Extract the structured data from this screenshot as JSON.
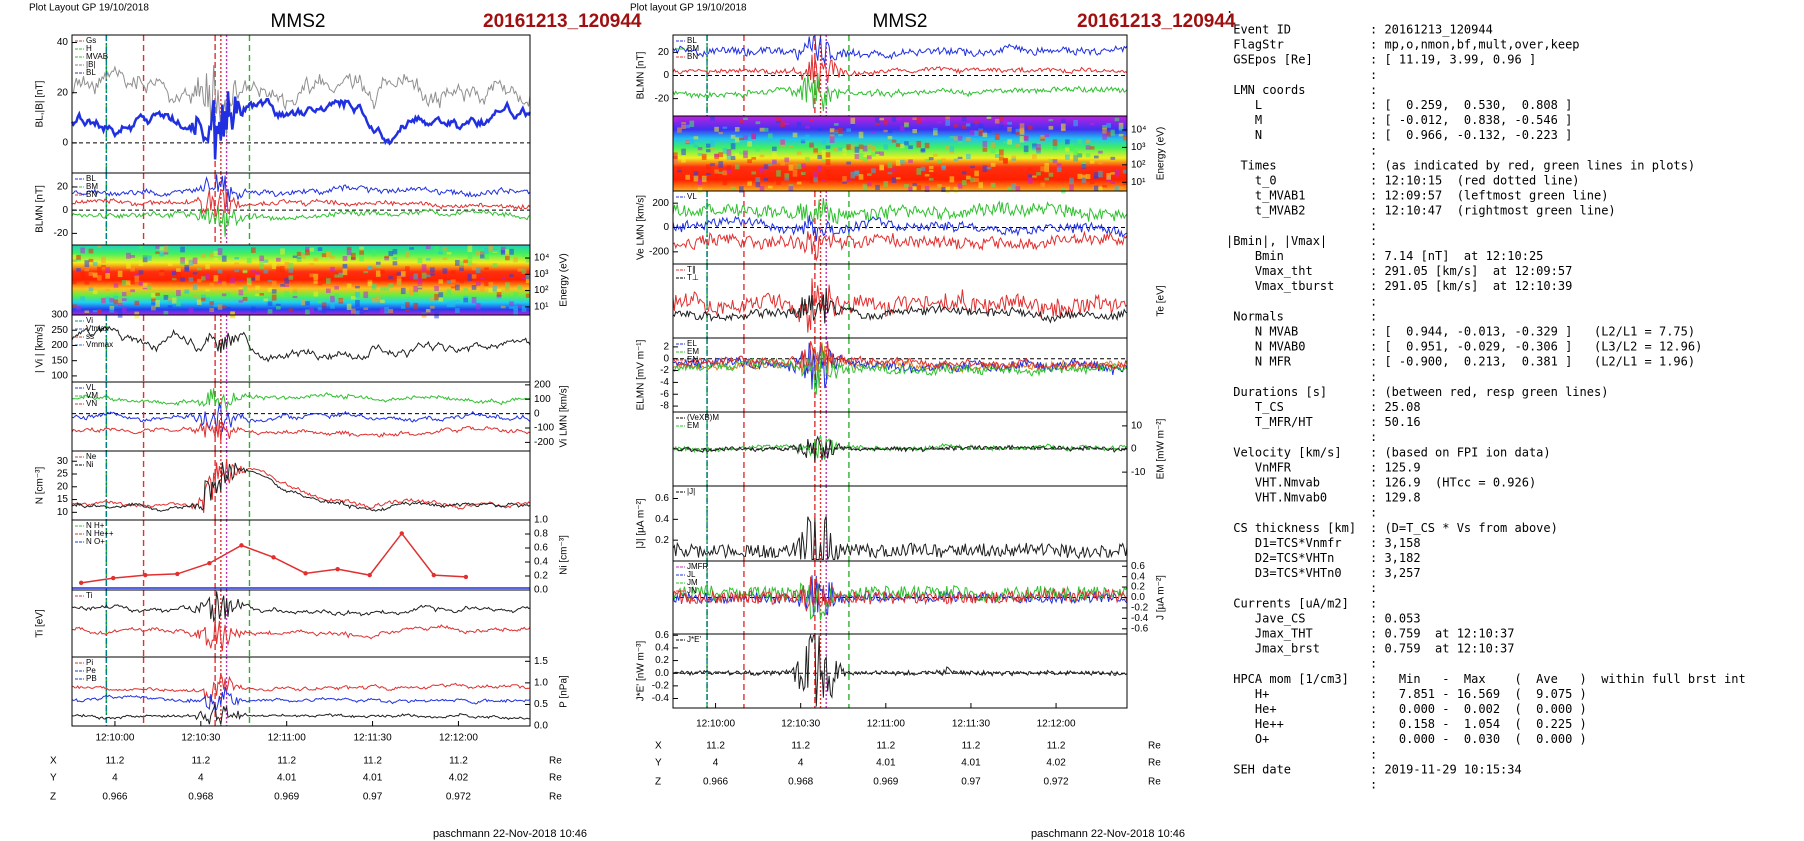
{
  "left": {
    "header": "Plot Layout GP 19/10/2018",
    "mission": "MMS2",
    "event": "20161213_120944",
    "xlim": [
      43785,
      43945
    ],
    "xticks": [
      {
        "value": 43800,
        "label": "12:10:00"
      },
      {
        "value": 43830,
        "label": "12:10:30"
      },
      {
        "value": 43860,
        "label": "12:11:00"
      },
      {
        "value": 43890,
        "label": "12:11:30"
      },
      {
        "value": 43920,
        "label": "12:12:00"
      }
    ],
    "panels": [
      {
        "ylabel": "BL,|B| [nT]",
        "ylim": [
          -12,
          43
        ],
        "yticks": [
          0,
          20,
          40
        ],
        "side": "left",
        "legend": [
          {
            "name": "Gs",
            "color": "#e03030"
          },
          {
            "name": "H",
            "color": "#30c030"
          },
          {
            "name": "MVAB",
            "color": "#30c030"
          },
          {
            "name": "|B|",
            "color": "#808080"
          },
          {
            "name": "BL",
            "color": "#2030e0"
          }
        ]
      },
      {
        "ylabel": "BLMN [nT]",
        "ylim": [
          -30,
          32
        ],
        "yticks": [
          -20,
          0,
          20
        ],
        "side": "left",
        "legend": [
          {
            "name": "BL",
            "color": "#2030e0"
          },
          {
            "name": "BM",
            "color": "#30c030"
          },
          {
            "name": "BN",
            "color": "#e03030"
          }
        ]
      },
      {
        "ylabel": "Energy (eV)",
        "ylim": [
          0.5,
          4.8
        ],
        "yticks": [
          {
            "value": 4,
            "label": "10⁴"
          },
          {
            "value": 3,
            "label": "10³"
          },
          {
            "value": 2,
            "label": "10²"
          },
          {
            "value": 1,
            "label": "10¹"
          }
        ],
        "side": "right",
        "spectrogram": true
      },
      {
        "ylabel": "| Vi | [km/s]",
        "ylim": [
          80,
          300
        ],
        "yticks": [
          100,
          150,
          200,
          250,
          300
        ],
        "side": "left",
        "legend": [
          {
            "name": "Vi",
            "color": "#009090"
          },
          {
            "name": "Vtmax",
            "color": "#3060ff"
          },
          {
            "name": "ss",
            "color": "#e03030"
          },
          {
            "name": "Vmmax",
            "color": "#3060ff"
          }
        ]
      },
      {
        "ylabel": "Vi LMN [km/s]",
        "ylim": [
          -260,
          220
        ],
        "yticks": [
          200,
          100,
          0,
          -100,
          -200
        ],
        "side": "right",
        "legend": [
          {
            "name": "VL",
            "color": "#2030e0"
          },
          {
            "name": "VM",
            "color": "#30c030"
          },
          {
            "name": "VN",
            "color": "#e03030"
          }
        ]
      },
      {
        "ylabel": "N [cm⁻³]",
        "ylim": [
          7,
          34
        ],
        "yticks": [
          10,
          15,
          20,
          25,
          30
        ],
        "side": "left",
        "legend": [
          {
            "name": "Ne",
            "color": "#e03030"
          },
          {
            "name": "Ni",
            "color": "#000000"
          }
        ]
      },
      {
        "ylabel": "Ni [cm⁻³]",
        "ylim": [
          0,
          1.0
        ],
        "yticks": [
          {
            "value": 1,
            "label": "1.0"
          },
          {
            "value": 0.8,
            "label": "0.8"
          },
          {
            "value": 0.6,
            "label": "0.6"
          },
          {
            "value": 0.4,
            "label": "0.4"
          },
          {
            "value": 0.2,
            "label": "0.2"
          },
          {
            "value": 0,
            "label": "0.0"
          }
        ],
        "side": "right",
        "legend": [
          {
            "name": "N H+",
            "color": "#30c030"
          },
          {
            "name": "N He++",
            "color": "#e03030"
          },
          {
            "name": "N O+",
            "color": "#2030e0"
          }
        ]
      },
      {
        "ylabel": "Ti [eV]",
        "ylim": [
          0,
          1
        ],
        "side": "left",
        "legend": [
          {
            "name": "Ti",
            "color": "#e03030"
          }
        ]
      },
      {
        "ylabel": "P [nPa]",
        "ylim": [
          0,
          1.6
        ],
        "yticks": [
          {
            "value": 1.5,
            "label": "1.5"
          },
          {
            "value": 1,
            "label": "1.0"
          },
          {
            "value": 0.5,
            "label": "0.5"
          },
          {
            "value": 0,
            "label": "0.0"
          }
        ],
        "side": "right",
        "legend": [
          {
            "name": "Pi",
            "color": "#e03030"
          },
          {
            "name": "Pe",
            "color": "#2030e0"
          },
          {
            "name": "PB",
            "color": "#2030e0"
          }
        ]
      }
    ],
    "coords": [
      {
        "name": "X",
        "values": [
          11.2,
          11.2,
          11.2,
          11.2,
          11.2
        ],
        "unit": "Re"
      },
      {
        "name": "Y",
        "values": [
          4,
          4,
          4.01,
          4.01,
          4.02
        ],
        "unit": "Re"
      },
      {
        "name": "Z",
        "values": [
          0.966,
          0.968,
          0.969,
          0.97,
          0.972
        ],
        "unit": "Re"
      }
    ],
    "footer": "paschmann 22-Nov-2018 10:46"
  },
  "middle": {
    "header": "Plot layout GP 19/10/2018",
    "mission": "MMS2",
    "event": "20161213_120944",
    "xlim": [
      43785,
      43945
    ],
    "xticks": [
      {
        "value": 43800,
        "label": "12:10:00"
      },
      {
        "value": 43830,
        "label": "12:10:30"
      },
      {
        "value": 43860,
        "label": "12:11:00"
      },
      {
        "value": 43890,
        "label": "12:11:30"
      },
      {
        "value": 43920,
        "label": "12:12:00"
      }
    ],
    "panels": [
      {
        "ylabel": "BLMN [nT]",
        "ylim": [
          -35,
          35
        ],
        "yticks": [
          20,
          0,
          -20
        ],
        "side": "left",
        "legend": [
          {
            "name": "BL",
            "color": "#2030e0"
          },
          {
            "name": "BM",
            "color": "#30c030"
          },
          {
            "name": "BN",
            "color": "#e03030"
          }
        ]
      },
      {
        "ylabel": "Energy (eV)",
        "ylim": [
          0.5,
          4.8
        ],
        "yticks": [
          {
            "value": 4,
            "label": "10⁴"
          },
          {
            "value": 3,
            "label": "10³"
          },
          {
            "value": 2,
            "label": "10²"
          },
          {
            "value": 1,
            "label": "10¹"
          }
        ],
        "side": "right",
        "spectrogram": true
      },
      {
        "ylabel": "Ve LMN [km/s]",
        "ylim": [
          -300,
          300
        ],
        "yticks": [
          200,
          0,
          -200
        ],
        "side": "left",
        "legend": [
          {
            "name": "VL",
            "color": "#2030e0"
          }
        ]
      },
      {
        "ylabel": "Te [eV]",
        "ylim": [
          0,
          1
        ],
        "side": "right",
        "legend": [
          {
            "name": "T∥",
            "color": "#e03030"
          },
          {
            "name": "T⊥",
            "color": "#000000"
          }
        ]
      },
      {
        "ylabel": "ELMN [mV m⁻¹]",
        "ylim": [
          -9,
          3.5
        ],
        "yticks": [
          2,
          0,
          -2,
          -4,
          -6,
          -8
        ],
        "side": "left",
        "legend": [
          {
            "name": "EL",
            "color": "#2030e0"
          },
          {
            "name": "EM",
            "color": "#30c030"
          },
          {
            "name": "EN",
            "color": "#e03030"
          }
        ]
      },
      {
        "ylabel": "EM [mW m⁻²]",
        "ylim": [
          -16,
          16
        ],
        "yticks": [
          10,
          0,
          -10
        ],
        "side": "right",
        "legend": [
          {
            "name": "(VeXB)M",
            "color": "#000000"
          },
          {
            "name": "EM",
            "color": "#30c030"
          }
        ]
      },
      {
        "ylabel": "|J| [µA m⁻²]",
        "ylim": [
          0,
          0.72
        ],
        "yticks": [
          {
            "value": 0.6,
            "label": "0.6"
          },
          {
            "value": 0.4,
            "label": "0.4"
          },
          {
            "value": 0.2,
            "label": "0.2"
          }
        ],
        "side": "left",
        "legend": [
          {
            "name": "|J|",
            "color": "#000000"
          }
        ]
      },
      {
        "ylabel": "J [µA m⁻²]",
        "ylim": [
          -0.7,
          0.7
        ],
        "yticks": [
          {
            "value": 0.6,
            "label": "0.6"
          },
          {
            "value": 0.4,
            "label": "0.4"
          },
          {
            "value": 0.2,
            "label": "0.2"
          },
          {
            "value": 0,
            "label": "0.0"
          },
          {
            "value": -0.2,
            "label": "-0.2"
          },
          {
            "value": -0.4,
            "label": "-0.4"
          },
          {
            "value": -0.6,
            "label": "-0.6"
          }
        ],
        "side": "right",
        "legend": [
          {
            "name": "JMFR",
            "color": "#c030c0"
          },
          {
            "name": "JL",
            "color": "#2030e0"
          },
          {
            "name": "JM",
            "color": "#30c030"
          },
          {
            "name": "JN",
            "color": "#e03030"
          }
        ]
      },
      {
        "ylabel": "J*E' [nW m⁻³]",
        "ylim": [
          -0.55,
          0.62
        ],
        "yticks": [
          {
            "value": 0.6,
            "label": "0.6"
          },
          {
            "value": 0.4,
            "label": "0.4"
          },
          {
            "value": 0.2,
            "label": "0.2"
          },
          {
            "value": 0,
            "label": "0.0"
          },
          {
            "value": -0.2,
            "label": "-0.2"
          },
          {
            "value": -0.4,
            "label": "-0.4"
          }
        ],
        "side": "left",
        "legend": [
          {
            "name": "J*E'",
            "color": "#000000"
          }
        ]
      }
    ],
    "coords": [
      {
        "name": "X",
        "values": [
          11.2,
          11.2,
          11.2,
          11.2,
          11.2
        ],
        "unit": "Re"
      },
      {
        "name": "Y",
        "values": [
          4,
          4,
          4.01,
          4.01,
          4.02
        ],
        "unit": "Re"
      },
      {
        "name": "Z",
        "values": [
          0.966,
          0.968,
          0.969,
          0.97,
          0.972
        ],
        "unit": "Re"
      }
    ],
    "footer": "paschmann 22-Nov-2018 10:46"
  },
  "right": {
    "lines": [
      {
        "k": ":"
      },
      {
        "k": " Event ID",
        "v": ": 20161213_120944"
      },
      {
        "k": " FlagStr",
        "v": ": mp,o,nmon,bf,mult,over,keep"
      },
      {
        "k": " GSEpos [Re]",
        "v": ": [ 11.19, 3.99, 0.96 ]"
      },
      {
        "v": ":"
      },
      {
        "k": " LMN coords",
        "v": ":"
      },
      {
        "k": "    L",
        "v": ": [  0.259,  0.530,  0.808 ]"
      },
      {
        "k": "    M",
        "v": ": [ -0.012,  0.838, -0.546 ]"
      },
      {
        "k": "    N",
        "v": ": [  0.966, -0.132, -0.223 ]"
      },
      {
        "v": ":"
      },
      {
        "k": "  Times",
        "v": ": (as indicated by red, green lines in plots)"
      },
      {
        "k": "    t_0",
        "v": ": 12:10:15  (red dotted line)"
      },
      {
        "k": "    t_MVAB1",
        "v": ": 12:09:57  (leftmost green line)"
      },
      {
        "k": "    t_MVAB2",
        "v": ": 12:10:47  (rightmost green line)"
      },
      {
        "v": ":"
      },
      {
        "k": "|Bmin|, |Vmax|",
        "v": ":"
      },
      {
        "k": "    Bmin",
        "v": ": 7.14 [nT]  at 12:10:25"
      },
      {
        "k": "    Vmax_tht",
        "v": ": 291.05 [km/s]  at 12:09:57"
      },
      {
        "k": "    Vmax_tburst",
        "v": ": 291.05 [km/s]  at 12:10:39"
      },
      {
        "v": ":"
      },
      {
        "k": " Normals",
        "v": ":"
      },
      {
        "k": "    N MVAB",
        "v": ": [  0.944, -0.013, -0.329 ]   (L2/L1 = 7.75)"
      },
      {
        "k": "    N MVAB0",
        "v": ": [  0.951, -0.029, -0.306 ]   (L3/L2 = 12.96)"
      },
      {
        "k": "    N MFR",
        "v": ": [ -0.900,  0.213,  0.381 ]   (L2/L1 = 1.96)"
      },
      {
        "v": ":"
      },
      {
        "k": " Durations [s]",
        "v": ": (between red, resp green lines)"
      },
      {
        "k": "    T_CS",
        "v": ": 25.08"
      },
      {
        "k": "    T_MFR/HT",
        "v": ": 50.16"
      },
      {
        "v": ":"
      },
      {
        "k": " Velocity [km/s]",
        "v": ": (based on FPI ion data)"
      },
      {
        "k": "    VnMFR",
        "v": ": 125.9"
      },
      {
        "k": "    VHT.Nmvab",
        "v": ": 126.9  (HTcc = 0.926)"
      },
      {
        "k": "    VHT.Nmvab0",
        "v": ": 129.8"
      },
      {
        "v": ":"
      },
      {
        "k": " CS thickness [km]",
        "v": ": (D=T_CS * Vs from above)"
      },
      {
        "k": "    D1=TCS*Vnmfr",
        "v": ": 3,158"
      },
      {
        "k": "    D2=TCS*VHTn",
        "v": ": 3,182"
      },
      {
        "k": "    D3=TCS*VHTn0",
        "v": ": 3,257"
      },
      {
        "v": ":"
      },
      {
        "k": " Currents [uA/m2]",
        "v": ":"
      },
      {
        "k": "    Jave_CS",
        "v": ": 0.053"
      },
      {
        "k": "    Jmax_THT",
        "v": ": 0.759  at 12:10:37"
      },
      {
        "k": "    Jmax_brst",
        "v": ": 0.759  at 12:10:37"
      },
      {
        "v": ":"
      },
      {
        "k": " HPCA mom [1/cm3]",
        "v": ":   Min   -  Max    (  Ave   )  within full brst int"
      },
      {
        "k": "    H+",
        "v": ":   7.851 - 16.569  (  9.075 )"
      },
      {
        "k": "    He+",
        "v": ":   0.000 -  0.002  (  0.000 )"
      },
      {
        "k": "    He++",
        "v": ":   0.158 -  1.054  (  0.225 )"
      },
      {
        "k": "    O+",
        "v": ":   0.000 -  0.030  (  0.000 )"
      },
      {
        "v": ":"
      },
      {
        "k": " SEH date",
        "v": ": 2019-11-29 10:15:34"
      },
      {
        "v": ":"
      }
    ]
  }
}
